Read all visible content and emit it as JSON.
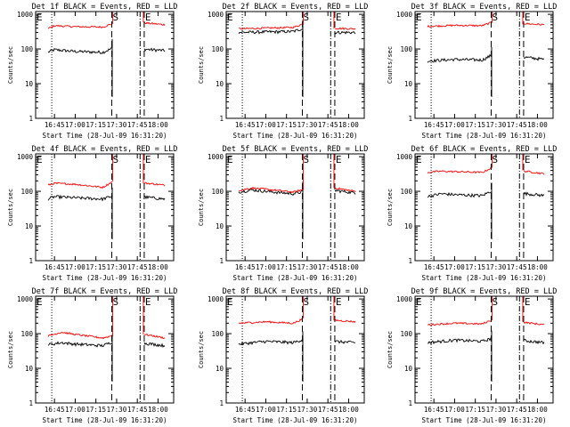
{
  "chart_data": [
    {
      "type": "line",
      "title": "Det 1f BLACK = Events, RED = LLD",
      "xlabel": "Start Time (28-Jul-09 16:31:20)",
      "ylabel": "Counts/sec",
      "xticks": [
        "16:45",
        "17:00",
        "17:15",
        "17:30",
        "17:45",
        "18:00"
      ],
      "yticks": [
        "1",
        "10",
        "100",
        "1000"
      ],
      "ylim": [
        1,
        1200
      ],
      "yscale": "log",
      "markers": [
        "S",
        "E"
      ],
      "series": [
        {
          "color": "#000000",
          "levels": [
            {
              "x": "16:40",
              "y": 80
            },
            {
              "x": "16:45",
              "y": 95
            },
            {
              "x": "17:00",
              "y": 85
            },
            {
              "x": "17:20",
              "y": 80
            },
            {
              "x": "17:28",
              "y": 110
            },
            {
              "x": "17:47",
              "y": 100
            },
            {
              "x": "18:05",
              "y": 90
            }
          ]
        },
        {
          "color": "#ff0000",
          "levels": [
            {
              "x": "16:40",
              "y": 380
            },
            {
              "x": "16:45",
              "y": 470
            },
            {
              "x": "17:00",
              "y": 440
            },
            {
              "x": "17:20",
              "y": 430
            },
            {
              "x": "17:28",
              "y": 550
            },
            {
              "x": "17:47",
              "y": 580
            },
            {
              "x": "18:05",
              "y": 500
            }
          ]
        }
      ]
    },
    {
      "type": "line",
      "title": "Det 2f BLACK = Events, RED = LLD",
      "xlabel": "Start Time (28-Jul-09 16:31:20)",
      "ylabel": "Counts/sec",
      "xticks": [
        "16:45",
        "17:00",
        "17:15",
        "17:30",
        "17:45",
        "18:00"
      ],
      "yticks": [
        "1",
        "10",
        "100",
        "1000"
      ],
      "ylim": [
        1,
        1200
      ],
      "yscale": "log",
      "markers": [
        "S",
        "E"
      ],
      "series": [
        {
          "color": "#000000",
          "levels": [
            {
              "x": "16:40",
              "y": 300
            },
            {
              "x": "17:20",
              "y": 320
            },
            {
              "x": "17:28",
              "y": 400
            },
            {
              "x": "17:47",
              "y": 300
            },
            {
              "x": "18:05",
              "y": 300
            }
          ]
        },
        {
          "color": "#ff0000",
          "levels": [
            {
              "x": "16:40",
              "y": 380
            },
            {
              "x": "17:20",
              "y": 420
            },
            {
              "x": "17:28",
              "y": 550
            },
            {
              "x": "17:33",
              "y": 1100
            },
            {
              "x": "17:38",
              "y": 700
            },
            {
              "x": "17:42",
              "y": 900
            },
            {
              "x": "17:47",
              "y": 400
            },
            {
              "x": "18:05",
              "y": 380
            }
          ]
        }
      ]
    },
    {
      "type": "line",
      "title": "Det 3f BLACK = Events, RED = LLD",
      "xlabel": "Start Time (28-Jul-09 16:31:20)",
      "ylabel": "Counts/sec",
      "xticks": [
        "16:45",
        "17:00",
        "17:15",
        "17:30",
        "17:45",
        "18:00"
      ],
      "yticks": [
        "1",
        "10",
        "100",
        "1000"
      ],
      "ylim": [
        1,
        1200
      ],
      "yscale": "log",
      "markers": [
        "S",
        "E"
      ],
      "series": [
        {
          "color": "#000000",
          "levels": [
            {
              "x": "16:40",
              "y": 45
            },
            {
              "x": "17:00",
              "y": 50
            },
            {
              "x": "17:20",
              "y": 48
            },
            {
              "x": "17:28",
              "y": 70
            },
            {
              "x": "17:47",
              "y": 60
            },
            {
              "x": "18:05",
              "y": 50
            }
          ]
        },
        {
          "color": "#ff0000",
          "levels": [
            {
              "x": "16:40",
              "y": 450
            },
            {
              "x": "17:00",
              "y": 480
            },
            {
              "x": "17:20",
              "y": 470
            },
            {
              "x": "17:28",
              "y": 600
            },
            {
              "x": "17:47",
              "y": 550
            },
            {
              "x": "18:05",
              "y": 500
            }
          ]
        }
      ]
    },
    {
      "type": "line",
      "title": "Det 4f BLACK = Events, RED = LLD",
      "xlabel": "Start Time (28-Jul-09 16:31:20)",
      "ylabel": "Counts/sec",
      "xticks": [
        "16:45",
        "17:00",
        "17:15",
        "17:30",
        "17:45",
        "18:00"
      ],
      "yticks": [
        "1",
        "10",
        "100",
        "1000"
      ],
      "ylim": [
        1,
        1200
      ],
      "yscale": "log",
      "markers": [
        "S",
        "E"
      ],
      "series": [
        {
          "color": "#000000",
          "levels": [
            {
              "x": "16:40",
              "y": 60
            },
            {
              "x": "16:45",
              "y": 70
            },
            {
              "x": "17:00",
              "y": 65
            },
            {
              "x": "17:20",
              "y": 60
            },
            {
              "x": "17:28",
              "y": 75
            },
            {
              "x": "17:47",
              "y": 70
            },
            {
              "x": "18:05",
              "y": 60
            }
          ]
        },
        {
          "color": "#ff0000",
          "levels": [
            {
              "x": "16:40",
              "y": 150
            },
            {
              "x": "16:45",
              "y": 170
            },
            {
              "x": "17:00",
              "y": 160
            },
            {
              "x": "17:20",
              "y": 130
            },
            {
              "x": "17:28",
              "y": 200
            },
            {
              "x": "17:47",
              "y": 180
            },
            {
              "x": "18:05",
              "y": 150
            }
          ]
        }
      ]
    },
    {
      "type": "line",
      "title": "Det 5f BLACK = Events, RED = LLD",
      "xlabel": "Start Time (28-Jul-09 16:31:20)",
      "ylabel": "Counts/sec",
      "xticks": [
        "16:45",
        "17:00",
        "17:15",
        "17:30",
        "17:45",
        "18:00"
      ],
      "yticks": [
        "1",
        "10",
        "100",
        "1000"
      ],
      "ylim": [
        1,
        1200
      ],
      "yscale": "log",
      "markers": [
        "S",
        "E"
      ],
      "series": [
        {
          "color": "#000000",
          "levels": [
            {
              "x": "16:40",
              "y": 95
            },
            {
              "x": "16:50",
              "y": 110
            },
            {
              "x": "17:00",
              "y": 100
            },
            {
              "x": "17:20",
              "y": 85
            },
            {
              "x": "17:28",
              "y": 100
            },
            {
              "x": "17:47",
              "y": 110
            },
            {
              "x": "18:05",
              "y": 90
            }
          ]
        },
        {
          "color": "#ff0000",
          "levels": [
            {
              "x": "16:40",
              "y": 105
            },
            {
              "x": "16:50",
              "y": 125
            },
            {
              "x": "17:00",
              "y": 115
            },
            {
              "x": "17:20",
              "y": 95
            },
            {
              "x": "17:28",
              "y": 115
            },
            {
              "x": "17:47",
              "y": 130
            },
            {
              "x": "18:05",
              "y": 100
            }
          ]
        }
      ]
    },
    {
      "type": "line",
      "title": "Det 6f BLACK = Events, RED = LLD",
      "xlabel": "Start Time (28-Jul-09 16:31:20)",
      "ylabel": "Counts/sec",
      "xticks": [
        "16:45",
        "17:00",
        "17:15",
        "17:30",
        "17:45",
        "18:00"
      ],
      "yticks": [
        "1",
        "10",
        "100",
        "1000"
      ],
      "ylim": [
        1,
        1200
      ],
      "yscale": "log",
      "markers": [
        "S",
        "E"
      ],
      "series": [
        {
          "color": "#000000",
          "levels": [
            {
              "x": "16:40",
              "y": 70
            },
            {
              "x": "16:50",
              "y": 85
            },
            {
              "x": "17:00",
              "y": 80
            },
            {
              "x": "17:20",
              "y": 75
            },
            {
              "x": "17:28",
              "y": 110
            },
            {
              "x": "17:47",
              "y": 90
            },
            {
              "x": "18:05",
              "y": 75
            }
          ]
        },
        {
          "color": "#ff0000",
          "levels": [
            {
              "x": "16:40",
              "y": 350
            },
            {
              "x": "16:50",
              "y": 380
            },
            {
              "x": "17:00",
              "y": 370
            },
            {
              "x": "17:20",
              "y": 350
            },
            {
              "x": "17:28",
              "y": 500
            },
            {
              "x": "17:47",
              "y": 400
            },
            {
              "x": "18:05",
              "y": 320
            }
          ]
        }
      ]
    },
    {
      "type": "line",
      "title": "Det 7f BLACK = Events, RED = LLD",
      "xlabel": "Start Time (28-Jul-09 16:31:20)",
      "ylabel": "Counts/sec",
      "xticks": [
        "16:45",
        "17:00",
        "17:15",
        "17:30",
        "17:45",
        "18:00"
      ],
      "yticks": [
        "1",
        "10",
        "100",
        "1000"
      ],
      "ylim": [
        1,
        1200
      ],
      "yscale": "log",
      "markers": [
        "S",
        "E"
      ],
      "series": [
        {
          "color": "#000000",
          "levels": [
            {
              "x": "16:40",
              "y": 48
            },
            {
              "x": "16:50",
              "y": 55
            },
            {
              "x": "17:00",
              "y": 50
            },
            {
              "x": "17:20",
              "y": 45
            },
            {
              "x": "17:28",
              "y": 60
            },
            {
              "x": "17:47",
              "y": 55
            },
            {
              "x": "18:05",
              "y": 45
            }
          ]
        },
        {
          "color": "#ff0000",
          "levels": [
            {
              "x": "16:40",
              "y": 85
            },
            {
              "x": "16:50",
              "y": 110
            },
            {
              "x": "17:00",
              "y": 95
            },
            {
              "x": "17:20",
              "y": 75
            },
            {
              "x": "17:28",
              "y": 90
            },
            {
              "x": "17:47",
              "y": 100
            },
            {
              "x": "18:05",
              "y": 75
            }
          ]
        }
      ]
    },
    {
      "type": "line",
      "title": "Det 8f BLACK = Events, RED = LLD",
      "xlabel": "Start Time (28-Jul-09 16:31:20)",
      "ylabel": "Counts/sec",
      "xticks": [
        "16:45",
        "17:00",
        "17:15",
        "17:30",
        "17:45",
        "18:00"
      ],
      "yticks": [
        "1",
        "10",
        "100",
        "1000"
      ],
      "ylim": [
        1,
        1200
      ],
      "yscale": "log",
      "markers": [
        "S",
        "E"
      ],
      "series": [
        {
          "color": "#000000",
          "levels": [
            {
              "x": "16:40",
              "y": 50
            },
            {
              "x": "17:00",
              "y": 60
            },
            {
              "x": "17:20",
              "y": 55
            },
            {
              "x": "17:28",
              "y": 70
            },
            {
              "x": "17:47",
              "y": 60
            },
            {
              "x": "18:05",
              "y": 55
            }
          ]
        },
        {
          "color": "#ff0000",
          "levels": [
            {
              "x": "16:40",
              "y": 200
            },
            {
              "x": "17:00",
              "y": 220
            },
            {
              "x": "17:20",
              "y": 200
            },
            {
              "x": "17:28",
              "y": 280
            },
            {
              "x": "17:47",
              "y": 250
            },
            {
              "x": "18:05",
              "y": 220
            }
          ]
        }
      ]
    },
    {
      "type": "line",
      "title": "Det 9f BLACK = Events, RED = LLD",
      "xlabel": "Start Time (28-Jul-09 16:31:20)",
      "ylabel": "Counts/sec",
      "xticks": [
        "16:45",
        "17:00",
        "17:15",
        "17:30",
        "17:45",
        "18:00"
      ],
      "yticks": [
        "1",
        "10",
        "100",
        "1000"
      ],
      "ylim": [
        1,
        1200
      ],
      "yscale": "log",
      "markers": [
        "S",
        "E"
      ],
      "series": [
        {
          "color": "#000000",
          "levels": [
            {
              "x": "16:40",
              "y": 55
            },
            {
              "x": "17:00",
              "y": 65
            },
            {
              "x": "17:20",
              "y": 60
            },
            {
              "x": "17:28",
              "y": 75
            },
            {
              "x": "17:47",
              "y": 65
            },
            {
              "x": "18:05",
              "y": 55
            }
          ]
        },
        {
          "color": "#ff0000",
          "levels": [
            {
              "x": "16:40",
              "y": 180
            },
            {
              "x": "17:00",
              "y": 200
            },
            {
              "x": "17:20",
              "y": 190
            },
            {
              "x": "17:28",
              "y": 260
            },
            {
              "x": "17:47",
              "y": 220
            },
            {
              "x": "18:05",
              "y": 180
            }
          ]
        }
      ]
    }
  ]
}
